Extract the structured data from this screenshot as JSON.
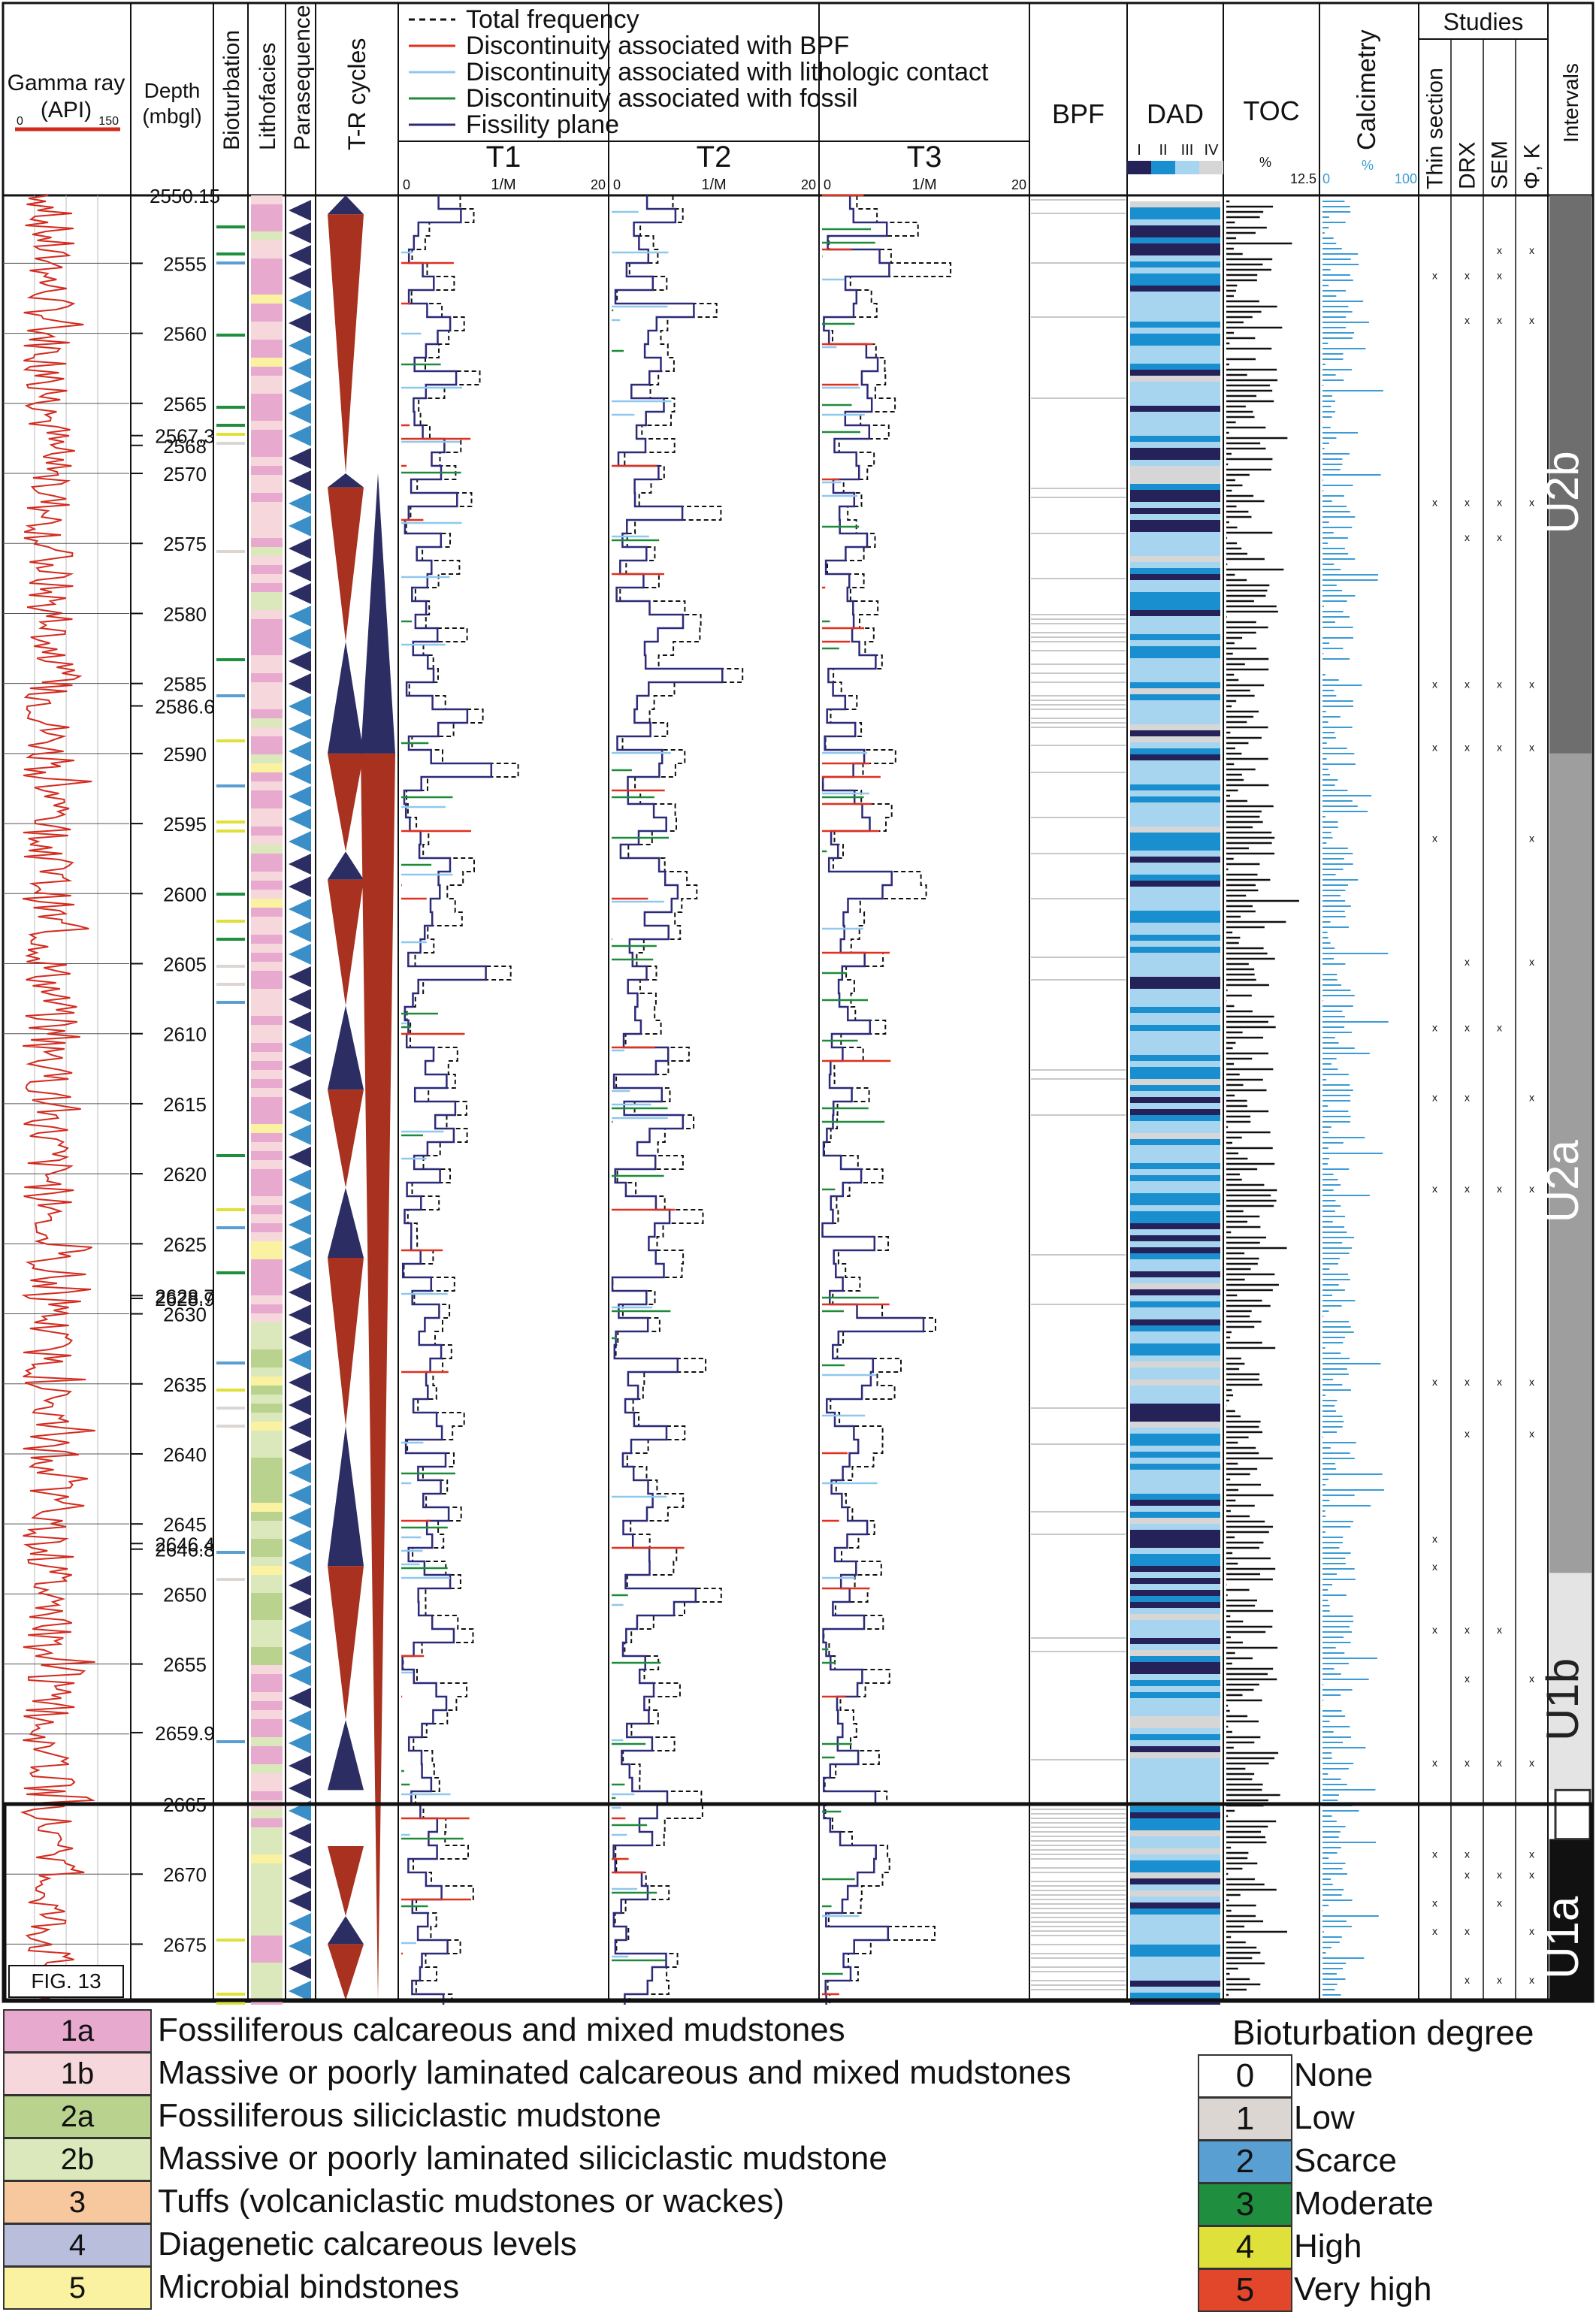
{
  "chart_data": {
    "type": "well-log",
    "depth_track": {
      "title": "Depth",
      "unit": "(mbgl)",
      "min": 2550.15,
      "max": 2679.0,
      "tick_labels": [
        "2550.15",
        "2555",
        "2560",
        "2565",
        "2567.3",
        "2568",
        "2570",
        "2575",
        "2580",
        "2585",
        "2586.6",
        "2590",
        "2595",
        "2600",
        "2605",
        "2610",
        "2615",
        "2620",
        "2625",
        "2628.7",
        "2628.9",
        "2630",
        "2635",
        "2640",
        "2645",
        "2646.4",
        "2646.8",
        "2650",
        "2655",
        "2659.9",
        "2665",
        "2670",
        "2675"
      ],
      "tick_values": [
        2550.15,
        2555,
        2560,
        2565,
        2567.3,
        2568,
        2570,
        2575,
        2580,
        2585,
        2586.6,
        2590,
        2595,
        2600,
        2605,
        2610,
        2615,
        2620,
        2625,
        2628.7,
        2628.9,
        2630,
        2635,
        2640,
        2645,
        2646.4,
        2646.8,
        2650,
        2655,
        2659.9,
        2665,
        2670,
        2675
      ]
    },
    "gamma_ray": {
      "title": "Gamma ray",
      "unit": "(API)",
      "min": 0,
      "max": 150,
      "min_label": "0",
      "max_label": "150",
      "color": "#d42a1e"
    },
    "column_headers": {
      "bioturbation": "Bioturbation",
      "lithofacies": "Lithofacies",
      "parasequence": "Parasequence",
      "tr_cycles": "T-R cycles",
      "bpf": "BPF",
      "dad": "DAD",
      "toc": "TOC",
      "calcimetry": "Calcimetry",
      "studies": "Studies",
      "intervals": "Intervals"
    },
    "fracture_legend": [
      {
        "label": "Total frequency",
        "color": "#111111",
        "style": "dashed"
      },
      {
        "label": "Discontinuity associated with BPF",
        "color": "#e0301e",
        "style": "solid"
      },
      {
        "label": "Discontinuity associated with lithologic contact",
        "color": "#8fc8ee",
        "style": "solid"
      },
      {
        "label": "Discontinuity associated with fossil",
        "color": "#1f8a3a",
        "style": "solid"
      },
      {
        "label": "Fissility plane",
        "color": "#2c2a7a",
        "style": "solid"
      }
    ],
    "fracture_tracks": [
      {
        "name": "T1",
        "axis_min": "0",
        "axis_unit": "1/M",
        "axis_max": "20"
      },
      {
        "name": "T2",
        "axis_min": "0",
        "axis_unit": "1/M",
        "axis_max": "20"
      },
      {
        "name": "T3",
        "axis_min": "0",
        "axis_unit": "1/M",
        "axis_max": "20"
      }
    ],
    "dad_classes": [
      {
        "label": "I",
        "color": "#25225a"
      },
      {
        "label": "II",
        "color": "#1a8fd0"
      },
      {
        "label": "III",
        "color": "#a7d5f0"
      },
      {
        "label": "IV",
        "color": "#d6d6d6"
      }
    ],
    "toc_axis": {
      "unit": "%",
      "max_label": "12.5",
      "min": 0,
      "max": 12.5
    },
    "calcimetry_axis": {
      "unit": "%",
      "min_label": "0",
      "max_label": "100",
      "min": 0,
      "max": 100
    },
    "studies": [
      "Thin section",
      "DRX",
      "SEM",
      "Φ, K"
    ],
    "intervals": [
      {
        "name": "U2b",
        "top": 2550.15,
        "base": 2590.0,
        "color": "#6e6e6e"
      },
      {
        "name": "U2a",
        "top": 2590.0,
        "base": 2648.5,
        "color": "#9e9e9e"
      },
      {
        "name": "U1b",
        "top": 2648.5,
        "base": 2664.0,
        "color": "#e4e4e4"
      },
      {
        "name": "U1a",
        "top": 2667.5,
        "base": 2679.0,
        "color": "#111111"
      }
    ],
    "tr_cycle_colors": {
      "transgressive": "#2c2d63",
      "regressive": "#a8311f"
    },
    "figure_tag": "FIG. 13"
  },
  "legend": {
    "lithofacies": [
      {
        "code": "1a",
        "label": "Fossiliferous calcareous and mixed mudstones",
        "color": "#e8a9cf"
      },
      {
        "code": "1b",
        "label": "Massive or poorly laminated calcareous and mixed mudstones",
        "color": "#f6d7dc"
      },
      {
        "code": "2a",
        "label": "Fossiliferous siliciclastic mudstone",
        "color": "#b9d38f"
      },
      {
        "code": "2b",
        "label": "Massive or poorly laminated siliciclastic mudstone",
        "color": "#dbe8bb"
      },
      {
        "code": "3",
        "label": "Tuffs (volcaniclastic mudstones or wackes)",
        "color": "#f7c79d"
      },
      {
        "code": "4",
        "label": "Diagenetic calcareous levels",
        "color": "#b9bedc"
      },
      {
        "code": "5",
        "label": "Microbial bindstones",
        "color": "#faf2a0"
      }
    ],
    "bioturbation_title": "Bioturbation degree",
    "bioturbation": [
      {
        "code": "0",
        "label": "None",
        "color": "#ffffff"
      },
      {
        "code": "1",
        "label": "Low",
        "color": "#dcd6d3"
      },
      {
        "code": "2",
        "label": "Scarce",
        "color": "#5a9fd2"
      },
      {
        "code": "3",
        "label": "Moderate",
        "color": "#1f8f3f"
      },
      {
        "code": "4",
        "label": "High",
        "color": "#dfe03a"
      },
      {
        "code": "5",
        "label": "Very high",
        "color": "#e2472c"
      }
    ]
  }
}
